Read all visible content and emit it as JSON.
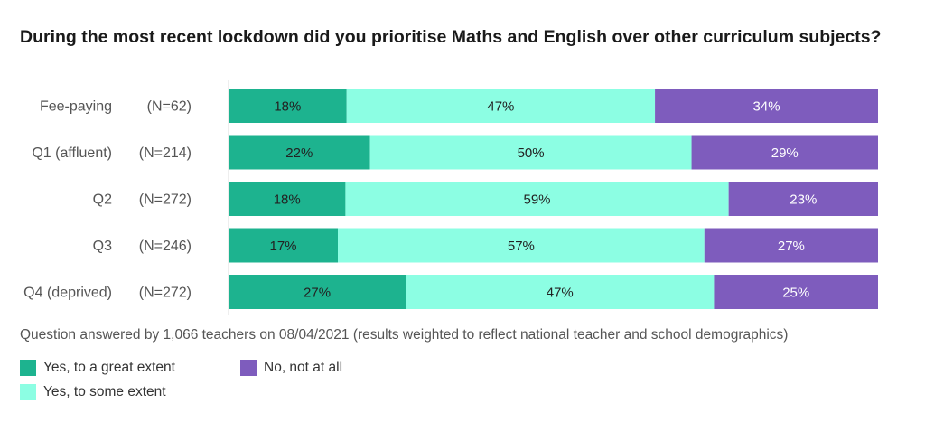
{
  "chart_data": {
    "type": "bar",
    "orientation": "horizontal",
    "stacked": true,
    "title": "During the most recent lockdown did you prioritise Maths and English over other curriculum subjects?",
    "categories": [
      "Fee-paying",
      "Q1 (affluent)",
      "Q2",
      "Q3",
      "Q4 (deprived)"
    ],
    "sample_sizes": [
      "(N=62)",
      "(N=214)",
      "(N=272)",
      "(N=246)",
      "(N=272)"
    ],
    "series": [
      {
        "name": "Yes, to a great extent",
        "values": [
          18,
          22,
          18,
          17,
          27
        ],
        "color": "#1db38f"
      },
      {
        "name": "Yes, to some extent",
        "values": [
          47,
          50,
          59,
          57,
          47
        ],
        "color": "#8cfee3"
      },
      {
        "name": "No, not at all",
        "values": [
          34,
          29,
          23,
          27,
          25
        ],
        "color": "#7e5cbd"
      }
    ],
    "value_suffix": "%",
    "note": "Question answered by 1,066 teachers on 08/04/2021 (results weighted to reflect national teacher and school demographics)",
    "legend_position": "bottom-left"
  }
}
